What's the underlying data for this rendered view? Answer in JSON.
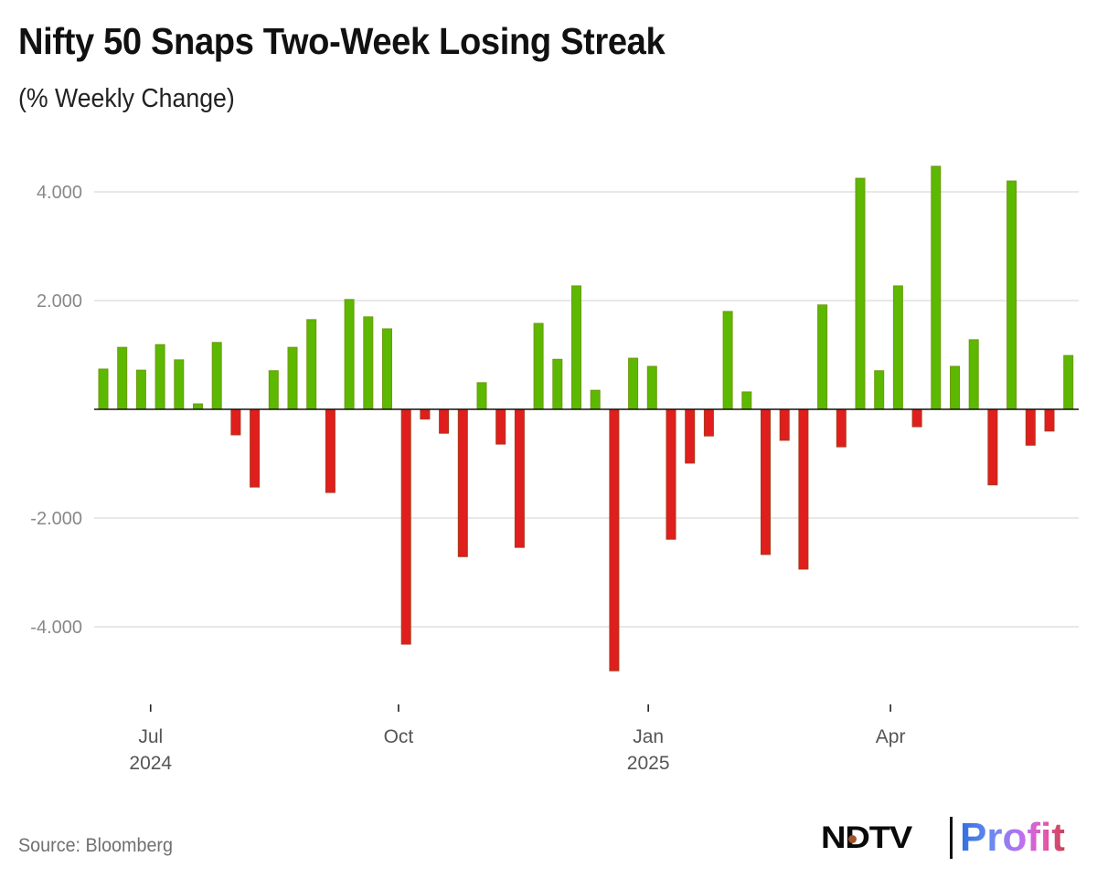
{
  "header": {
    "title": "Nifty 50 Snaps Two-Week Losing Streak",
    "subtitle": "(% Weekly Change)"
  },
  "footer": {
    "source": "Source: Bloomberg",
    "logo": {
      "brand": "NDTV",
      "product": "Profit"
    }
  },
  "colors": {
    "positive": "#5cb800",
    "positive_edge": "#6e9a10",
    "negative": "#e01e1e",
    "negative_edge": "#a83a1a",
    "grid": "#d9d9d9",
    "zero_line": "#111111",
    "tick_label": "#888888",
    "x_label": "#555555"
  },
  "chart_data": {
    "type": "bar",
    "title": "Nifty 50 Snaps Two-Week Losing Streak",
    "subtitle": "(% Weekly Change)",
    "xlabel": "",
    "ylabel": "% Weekly Change",
    "ylim": [
      -5.0,
      4.6
    ],
    "grid": true,
    "legend": "none",
    "y_ticks": [
      {
        "value": 4,
        "label": "4.000"
      },
      {
        "value": 2,
        "label": "2.000"
      },
      {
        "value": -2,
        "label": "-2.000"
      },
      {
        "value": -4,
        "label": "-4.000"
      }
    ],
    "x_ticks": [
      {
        "week_index": 2.5,
        "label": "Jul",
        "sublabel": "2024"
      },
      {
        "week_index": 15.6,
        "label": "Oct",
        "sublabel": ""
      },
      {
        "week_index": 28.8,
        "label": "Jan",
        "sublabel": "2025"
      },
      {
        "week_index": 41.6,
        "label": "Apr",
        "sublabel": ""
      }
    ],
    "series": [
      {
        "name": "Nifty 50 weekly % change",
        "values": [
          0.74,
          1.14,
          0.72,
          1.19,
          0.91,
          0.1,
          1.23,
          -0.47,
          -1.43,
          0.71,
          1.14,
          1.65,
          -1.53,
          2.02,
          1.7,
          1.48,
          -4.32,
          -0.18,
          -0.44,
          -2.71,
          0.49,
          -0.64,
          -2.54,
          1.58,
          0.92,
          2.27,
          0.35,
          -4.81,
          0.94,
          0.79,
          -2.39,
          -0.99,
          -0.49,
          1.8,
          0.32,
          -2.67,
          -0.57,
          -2.94,
          1.92,
          -0.69,
          4.25,
          0.71,
          2.27,
          -0.32,
          4.47,
          0.79,
          1.28,
          -1.39,
          4.2,
          -0.66,
          -0.4,
          0.99
        ]
      }
    ]
  }
}
